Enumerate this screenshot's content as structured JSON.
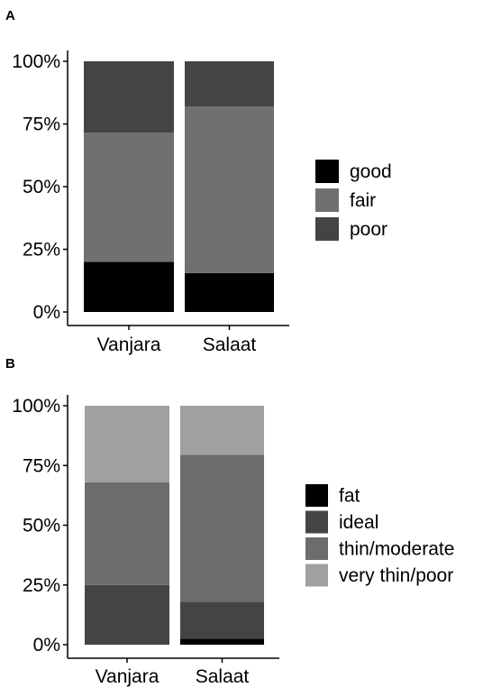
{
  "chart_data": [
    {
      "panel": "A",
      "type": "bar",
      "stacked": true,
      "categories": [
        "Vanjara",
        "Salaat"
      ],
      "series": [
        {
          "name": "good",
          "color": "#000000",
          "values": [
            0.2,
            0.155
          ]
        },
        {
          "name": "fair",
          "color": "#707070",
          "values": [
            0.515,
            0.665
          ]
        },
        {
          "name": "poor",
          "color": "#444444",
          "values": [
            0.285,
            0.18
          ]
        }
      ],
      "yticks": [
        "0%",
        "25%",
        "50%",
        "75%",
        "100%"
      ],
      "ylim": [
        0,
        1
      ],
      "legend_position": "right",
      "grid": false
    },
    {
      "panel": "B",
      "type": "bar",
      "stacked": true,
      "categories": [
        "Vanjara",
        "Salaat"
      ],
      "series": [
        {
          "name": "fat",
          "color": "#000000",
          "values": [
            0.0,
            0.025
          ]
        },
        {
          "name": "ideal",
          "color": "#444444",
          "values": [
            0.25,
            0.155
          ]
        },
        {
          "name": "thin/moderate",
          "color": "#6c6c6c",
          "values": [
            0.43,
            0.615
          ]
        },
        {
          "name": "very thin/poor",
          "color": "#a0a0a0",
          "values": [
            0.32,
            0.205
          ]
        }
      ],
      "yticks": [
        "0%",
        "25%",
        "50%",
        "75%",
        "100%"
      ],
      "ylim": [
        0,
        1
      ],
      "legend_position": "right",
      "grid": false
    }
  ]
}
